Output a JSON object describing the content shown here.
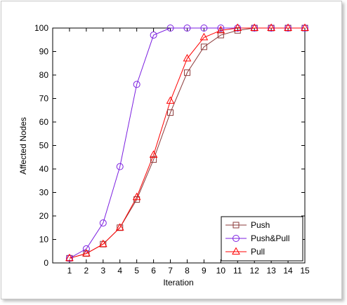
{
  "chart_data": {
    "type": "line",
    "title": "",
    "xlabel": "Iteration",
    "ylabel": "Affected Nodes",
    "x": [
      1,
      2,
      3,
      4,
      5,
      6,
      7,
      8,
      9,
      10,
      11,
      12,
      13,
      14,
      15
    ],
    "xlim": [
      0,
      15
    ],
    "ylim": [
      0,
      100
    ],
    "xticks": [
      1,
      2,
      3,
      4,
      5,
      6,
      7,
      8,
      9,
      10,
      11,
      12,
      13,
      14,
      15
    ],
    "yticks": [
      0,
      10,
      20,
      30,
      40,
      50,
      60,
      70,
      80,
      90,
      100
    ],
    "grid": false,
    "legend_position": "bottom-right",
    "series": [
      {
        "name": "Push",
        "marker": "square",
        "color": "#8B3A3A",
        "values": [
          2,
          4,
          8,
          15,
          27,
          44,
          64,
          81,
          92,
          97,
          99,
          100,
          100,
          100,
          100
        ]
      },
      {
        "name": "Push&Pull",
        "marker": "circle",
        "color": "#7B1FE0",
        "values": [
          2,
          6,
          17,
          41,
          76,
          97,
          100,
          100,
          100,
          100,
          100,
          100,
          100,
          100,
          100
        ]
      },
      {
        "name": "Pull",
        "marker": "triangle",
        "color": "#FF0000",
        "values": [
          2,
          4,
          8,
          15,
          28,
          46,
          69,
          87,
          96,
          99,
          100,
          100,
          100,
          100,
          100
        ]
      }
    ]
  }
}
